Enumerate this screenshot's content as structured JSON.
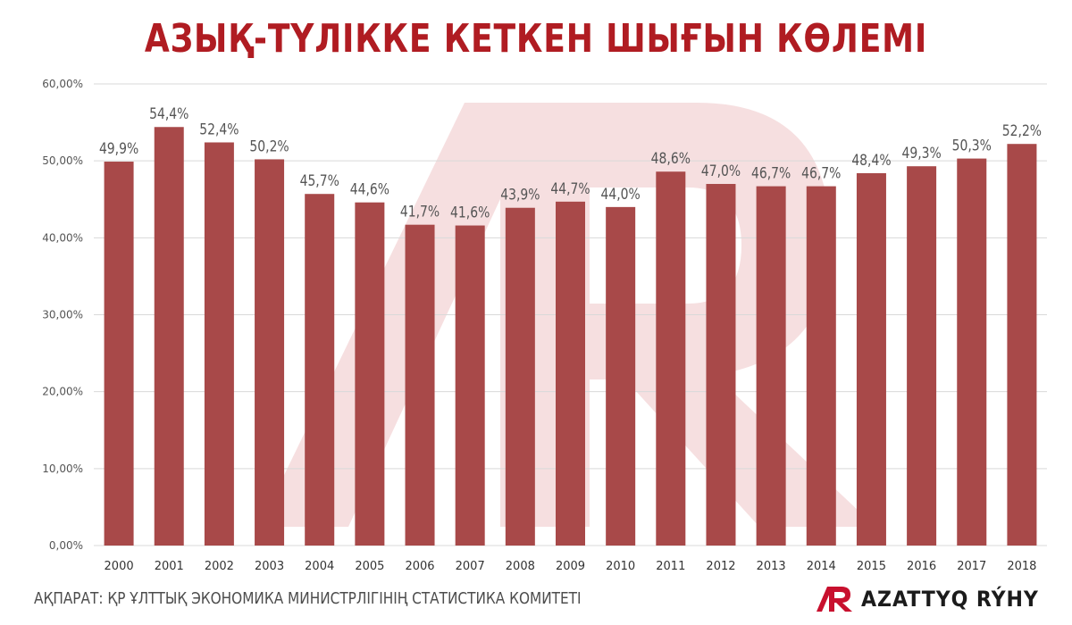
{
  "title": "АЗЫҚ-ТҮЛІККЕ КЕТКЕН ШЫҒЫН КӨЛЕМІ",
  "source": "АҚПАРАТ: ҚР ҰЛТТЫҚ ЭКОНОМИКА МИНИСТРЛІГІНІҢ СТАТИСТИКА КОМИТЕТІ",
  "logo_text": "AZATTYQ RÝHY",
  "colors": {
    "title": "#b01c22",
    "bar": "#a84949",
    "grid": "#d9d9d9",
    "label": "#555555",
    "watermark": "#f6dfe0",
    "logo_red": "#c8102e"
  },
  "chart_data": {
    "type": "bar",
    "categories": [
      "2000",
      "2001",
      "2002",
      "2003",
      "2004",
      "2005",
      "2006",
      "2007",
      "2008",
      "2009",
      "2010",
      "2011",
      "2012",
      "2013",
      "2014",
      "2015",
      "2016",
      "2017",
      "2018"
    ],
    "values": [
      49.9,
      54.4,
      52.4,
      50.2,
      45.7,
      44.6,
      41.7,
      41.6,
      43.9,
      44.7,
      44.0,
      48.6,
      47.0,
      46.7,
      46.7,
      48.4,
      49.3,
      50.3,
      52.2
    ],
    "data_labels": [
      "49,9%",
      "54,4%",
      "52,4%",
      "50,2%",
      "45,7%",
      "44,6%",
      "41,7%",
      "41,6%",
      "43,9%",
      "44,7%",
      "44,0%",
      "48,6%",
      "47,0%",
      "46,7%",
      "46,7%",
      "48,4%",
      "49,3%",
      "50,3%",
      "52,2%"
    ],
    "yticks": [
      0,
      10,
      20,
      30,
      40,
      50,
      60
    ],
    "ytick_labels": [
      "0,00%",
      "10,00%",
      "20,00%",
      "30,00%",
      "40,00%",
      "50,00%",
      "60,00%"
    ],
    "ylim": [
      0,
      60
    ],
    "grid": true
  }
}
